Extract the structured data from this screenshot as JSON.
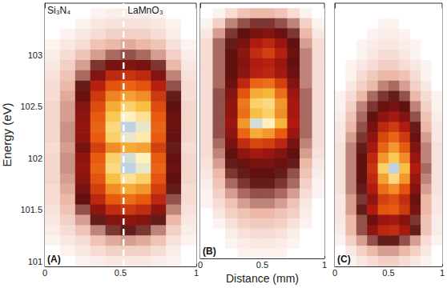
{
  "chart_data": [
    {
      "type": "heatmap",
      "panel_label": "(A)",
      "ylabel": "Energy (eV)",
      "annotations": [
        {
          "text": "Si₃N₄"
        },
        {
          "text": "LaMnO₃"
        }
      ],
      "boundary_x": 0.52,
      "xlim": [
        0,
        1
      ],
      "xticks": [
        0,
        0.5,
        1
      ],
      "ylim": [
        100.95,
        103.5
      ],
      "yticks": [
        101,
        101.5,
        102,
        102.5,
        103
      ],
      "tick_labels": true,
      "zlim": [
        0,
        100
      ],
      "x": [
        0.05,
        0.15,
        0.25,
        0.35,
        0.45,
        0.55,
        0.65,
        0.75,
        0.85,
        0.95
      ],
      "y": [
        103.4,
        103.3,
        103.2,
        103.1,
        103.0,
        102.9,
        102.8,
        102.7,
        102.6,
        102.5,
        102.4,
        102.3,
        102.2,
        102.1,
        102.0,
        101.9,
        101.8,
        101.7,
        101.6,
        101.5,
        101.4,
        101.3,
        101.2,
        101.1,
        101.0
      ],
      "z": [
        [
          0,
          0,
          0,
          2,
          3,
          3,
          3,
          2,
          0,
          0
        ],
        [
          0,
          0,
          2,
          4,
          5,
          5,
          5,
          4,
          2,
          0
        ],
        [
          0,
          2,
          4,
          6,
          8,
          8,
          8,
          6,
          3,
          0
        ],
        [
          2,
          4,
          6,
          10,
          12,
          13,
          12,
          10,
          5,
          2
        ],
        [
          3,
          6,
          10,
          14,
          18,
          20,
          18,
          14,
          8,
          3
        ],
        [
          4,
          8,
          14,
          22,
          30,
          32,
          30,
          22,
          12,
          4
        ],
        [
          5,
          10,
          18,
          32,
          45,
          48,
          45,
          32,
          16,
          5
        ],
        [
          6,
          12,
          24,
          42,
          58,
          62,
          58,
          42,
          20,
          6
        ],
        [
          6,
          13,
          28,
          50,
          68,
          74,
          70,
          50,
          24,
          6
        ],
        [
          7,
          14,
          32,
          56,
          76,
          84,
          80,
          56,
          26,
          7
        ],
        [
          7,
          14,
          34,
          60,
          82,
          92,
          88,
          60,
          28,
          7
        ],
        [
          7,
          15,
          35,
          62,
          86,
          98,
          94,
          62,
          28,
          7
        ],
        [
          7,
          15,
          34,
          60,
          84,
          94,
          90,
          60,
          27,
          7
        ],
        [
          6,
          14,
          30,
          52,
          70,
          76,
          74,
          52,
          24,
          6
        ],
        [
          7,
          15,
          34,
          60,
          84,
          96,
          92,
          60,
          27,
          7
        ],
        [
          7,
          15,
          35,
          62,
          86,
          98,
          94,
          62,
          28,
          7
        ],
        [
          7,
          14,
          33,
          58,
          80,
          88,
          84,
          58,
          26,
          7
        ],
        [
          6,
          13,
          30,
          52,
          70,
          76,
          72,
          52,
          24,
          6
        ],
        [
          6,
          12,
          26,
          44,
          60,
          64,
          60,
          44,
          20,
          6
        ],
        [
          5,
          10,
          20,
          34,
          46,
          50,
          46,
          34,
          16,
          5
        ],
        [
          4,
          8,
          14,
          24,
          32,
          34,
          32,
          24,
          12,
          4
        ],
        [
          3,
          6,
          10,
          16,
          22,
          24,
          22,
          16,
          8,
          3
        ],
        [
          2,
          4,
          6,
          10,
          13,
          14,
          13,
          10,
          5,
          2
        ],
        [
          0,
          2,
          4,
          6,
          8,
          8,
          8,
          6,
          3,
          0
        ],
        [
          0,
          0,
          2,
          3,
          4,
          4,
          4,
          3,
          2,
          0
        ]
      ]
    },
    {
      "type": "heatmap",
      "panel_label": "(B)",
      "xlabel": "Distance (mm)",
      "xlim": [
        0,
        1
      ],
      "xticks": [
        0,
        0.5,
        1
      ],
      "ylim": [
        100.95,
        103.5
      ],
      "yticks": [
        101,
        101.5,
        102,
        102.5,
        103
      ],
      "tick_labels": "x",
      "zlim": [
        0,
        100
      ],
      "x": [
        0.05,
        0.15,
        0.25,
        0.35,
        0.45,
        0.55,
        0.65,
        0.75,
        0.85,
        0.95
      ],
      "y": [
        103.4,
        103.3,
        103.2,
        103.1,
        103.0,
        102.9,
        102.8,
        102.7,
        102.6,
        102.5,
        102.4,
        102.3,
        102.2,
        102.1,
        102.0,
        101.9,
        101.8,
        101.7,
        101.6,
        101.5,
        101.4,
        101.3,
        101.2,
        101.1,
        101.0
      ],
      "z": [
        [
          0,
          2,
          6,
          10,
          12,
          12,
          10,
          6,
          2,
          0
        ],
        [
          2,
          8,
          16,
          20,
          22,
          22,
          20,
          16,
          8,
          2
        ],
        [
          4,
          14,
          22,
          26,
          30,
          32,
          28,
          22,
          12,
          4
        ],
        [
          6,
          18,
          24,
          30,
          40,
          44,
          36,
          26,
          14,
          6
        ],
        [
          6,
          18,
          26,
          34,
          46,
          52,
          42,
          28,
          16,
          6
        ],
        [
          6,
          18,
          26,
          32,
          40,
          42,
          36,
          26,
          16,
          6
        ],
        [
          6,
          18,
          26,
          34,
          42,
          44,
          38,
          28,
          16,
          6
        ],
        [
          6,
          18,
          28,
          44,
          62,
          64,
          52,
          32,
          16,
          6
        ],
        [
          6,
          20,
          32,
          58,
          76,
          78,
          64,
          36,
          18,
          6
        ],
        [
          6,
          20,
          34,
          66,
          84,
          86,
          72,
          38,
          18,
          6
        ],
        [
          6,
          20,
          34,
          64,
          80,
          84,
          70,
          38,
          18,
          6
        ],
        [
          6,
          20,
          36,
          72,
          96,
          92,
          78,
          40,
          18,
          6
        ],
        [
          6,
          20,
          34,
          62,
          76,
          72,
          60,
          36,
          18,
          6
        ],
        [
          6,
          18,
          30,
          46,
          54,
          52,
          44,
          30,
          16,
          6
        ],
        [
          6,
          16,
          26,
          34,
          38,
          36,
          32,
          26,
          14,
          5
        ],
        [
          5,
          14,
          24,
          28,
          30,
          30,
          28,
          24,
          12,
          4
        ],
        [
          4,
          12,
          22,
          24,
          26,
          26,
          24,
          20,
          10,
          3
        ],
        [
          3,
          10,
          18,
          22,
          24,
          24,
          22,
          18,
          8,
          2
        ],
        [
          2,
          8,
          14,
          18,
          20,
          20,
          18,
          14,
          6,
          2
        ],
        [
          2,
          6,
          10,
          14,
          16,
          16,
          14,
          10,
          4,
          0
        ],
        [
          0,
          4,
          8,
          10,
          12,
          12,
          10,
          8,
          3,
          0
        ],
        [
          0,
          2,
          5,
          8,
          9,
          9,
          8,
          5,
          2,
          0
        ],
        [
          0,
          0,
          3,
          5,
          6,
          6,
          5,
          3,
          0,
          0
        ],
        [
          0,
          0,
          2,
          3,
          4,
          4,
          3,
          2,
          0,
          0
        ],
        [
          0,
          0,
          0,
          2,
          2,
          2,
          2,
          0,
          0,
          0
        ]
      ]
    },
    {
      "type": "heatmap",
      "panel_label": "(C)",
      "xlim": [
        0,
        1
      ],
      "xticks": [
        0,
        0.5,
        1
      ],
      "ylim": [
        100.95,
        103.5
      ],
      "yticks": [
        101,
        101.5,
        102,
        102.5,
        103
      ],
      "tick_labels": "x",
      "zlim": [
        0,
        100
      ],
      "x": [
        0.05,
        0.15,
        0.25,
        0.35,
        0.45,
        0.55,
        0.65,
        0.75,
        0.85,
        0.95
      ],
      "y": [
        103.4,
        103.3,
        103.2,
        103.1,
        103.0,
        102.9,
        102.8,
        102.7,
        102.6,
        102.5,
        102.4,
        102.3,
        102.2,
        102.1,
        102.0,
        101.9,
        101.8,
        101.7,
        101.6,
        101.5,
        101.4,
        101.3,
        101.2,
        101.1,
        101.0
      ],
      "z": [
        [
          0,
          0,
          0,
          0,
          0,
          0,
          0,
          0,
          0,
          0
        ],
        [
          0,
          0,
          0,
          0,
          2,
          2,
          0,
          0,
          0,
          0
        ],
        [
          0,
          0,
          0,
          2,
          3,
          3,
          2,
          0,
          0,
          0
        ],
        [
          0,
          0,
          2,
          3,
          4,
          4,
          3,
          2,
          0,
          0
        ],
        [
          0,
          0,
          2,
          4,
          6,
          6,
          4,
          2,
          0,
          0
        ],
        [
          0,
          2,
          4,
          6,
          8,
          8,
          6,
          4,
          2,
          0
        ],
        [
          0,
          2,
          6,
          9,
          12,
          12,
          10,
          6,
          2,
          0
        ],
        [
          0,
          4,
          8,
          12,
          16,
          18,
          14,
          8,
          4,
          0
        ],
        [
          2,
          6,
          12,
          18,
          22,
          24,
          20,
          12,
          6,
          2
        ],
        [
          2,
          8,
          16,
          22,
          28,
          30,
          26,
          16,
          8,
          2
        ],
        [
          3,
          10,
          18,
          26,
          34,
          38,
          32,
          20,
          10,
          3
        ],
        [
          4,
          12,
          20,
          30,
          44,
          50,
          40,
          24,
          12,
          4
        ],
        [
          4,
          14,
          22,
          34,
          54,
          62,
          50,
          28,
          14,
          4
        ],
        [
          5,
          16,
          24,
          38,
          62,
          72,
          60,
          32,
          16,
          5
        ],
        [
          5,
          16,
          26,
          44,
          72,
          82,
          70,
          36,
          16,
          5
        ],
        [
          5,
          16,
          26,
          48,
          84,
          98,
          80,
          40,
          18,
          5
        ],
        [
          5,
          16,
          26,
          44,
          74,
          86,
          72,
          36,
          16,
          5
        ],
        [
          5,
          16,
          24,
          40,
          64,
          70,
          58,
          32,
          14,
          5
        ],
        [
          4,
          14,
          22,
          34,
          52,
          56,
          46,
          28,
          12,
          4
        ],
        [
          4,
          14,
          24,
          40,
          58,
          60,
          50,
          30,
          12,
          4
        ],
        [
          4,
          12,
          20,
          28,
          36,
          38,
          32,
          22,
          10,
          3
        ],
        [
          3,
          12,
          20,
          34,
          44,
          46,
          38,
          24,
          10,
          3
        ],
        [
          2,
          8,
          14,
          20,
          24,
          24,
          20,
          14,
          6,
          2
        ],
        [
          0,
          4,
          8,
          12,
          14,
          14,
          12,
          8,
          4,
          0
        ],
        [
          0,
          2,
          4,
          6,
          8,
          8,
          6,
          4,
          2,
          0
        ]
      ]
    }
  ]
}
